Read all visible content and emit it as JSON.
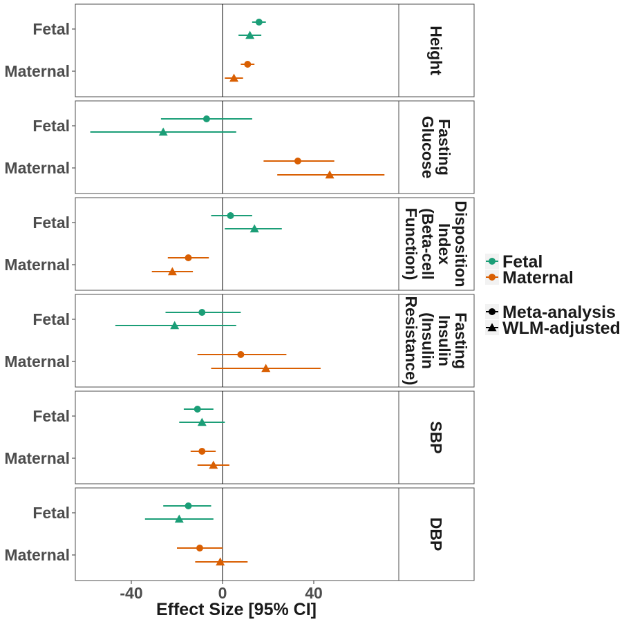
{
  "chart_data": {
    "type": "scatter",
    "subtype": "forest-plot",
    "xlabel": "Effect Size [95% CI]",
    "x_ticks": [
      -40,
      0,
      40
    ],
    "xlim": [
      -64,
      110
    ],
    "reference_line": 0,
    "y_categories": [
      "Fetal",
      "Maternal"
    ],
    "colors": {
      "Fetal": "#1b9e77",
      "Maternal": "#d95f02"
    },
    "legend": {
      "color_title": "",
      "color_entries": [
        "Fetal",
        "Maternal"
      ],
      "shape_title": "",
      "shape_entries": [
        "Meta-analysis",
        "WLM-adjusted"
      ],
      "placement": "right"
    },
    "panels": [
      {
        "label": "Height",
        "rows": [
          {
            "group": "Fetal",
            "method": "Meta-analysis",
            "est": 16,
            "lo": 13,
            "hi": 19
          },
          {
            "group": "Fetal",
            "method": "WLM-adjusted",
            "est": 12,
            "lo": 7,
            "hi": 17
          },
          {
            "group": "Maternal",
            "method": "Meta-analysis",
            "est": 11,
            "lo": 8,
            "hi": 14
          },
          {
            "group": "Maternal",
            "method": "WLM-adjusted",
            "est": 5,
            "lo": 1,
            "hi": 9
          }
        ]
      },
      {
        "label": "Fasting Glucose",
        "rows": [
          {
            "group": "Fetal",
            "method": "Meta-analysis",
            "est": -7,
            "lo": -27,
            "hi": 13
          },
          {
            "group": "Fetal",
            "method": "WLM-adjusted",
            "est": -26,
            "lo": -58,
            "hi": 6
          },
          {
            "group": "Maternal",
            "method": "Meta-analysis",
            "est": 33,
            "lo": 18,
            "hi": 49
          },
          {
            "group": "Maternal",
            "method": "WLM-adjusted",
            "est": 47,
            "lo": 24,
            "hi": 71
          }
        ]
      },
      {
        "label": "Disposition Index (Beta-cell Function)",
        "rows": [
          {
            "group": "Fetal",
            "method": "Meta-analysis",
            "est": 3.5,
            "lo": -5,
            "hi": 13
          },
          {
            "group": "Fetal",
            "method": "WLM-adjusted",
            "est": 14,
            "lo": 1,
            "hi": 26
          },
          {
            "group": "Maternal",
            "method": "Meta-analysis",
            "est": -15,
            "lo": -24,
            "hi": -6
          },
          {
            "group": "Maternal",
            "method": "WLM-adjusted",
            "est": -22,
            "lo": -31,
            "hi": -13
          }
        ]
      },
      {
        "label": "Fasting Insulin (Insulin Resistance)",
        "rows": [
          {
            "group": "Fetal",
            "method": "Meta-analysis",
            "est": -9,
            "lo": -25,
            "hi": 8
          },
          {
            "group": "Fetal",
            "method": "WLM-adjusted",
            "est": -21,
            "lo": -47,
            "hi": 6
          },
          {
            "group": "Maternal",
            "method": "Meta-analysis",
            "est": 8,
            "lo": -11,
            "hi": 28
          },
          {
            "group": "Maternal",
            "method": "WLM-adjusted",
            "est": 19,
            "lo": -5,
            "hi": 43
          }
        ]
      },
      {
        "label": "SBP",
        "rows": [
          {
            "group": "Fetal",
            "method": "Meta-analysis",
            "est": -11,
            "lo": -17,
            "hi": -4
          },
          {
            "group": "Fetal",
            "method": "WLM-adjusted",
            "est": -9,
            "lo": -19,
            "hi": 1
          },
          {
            "group": "Maternal",
            "method": "Meta-analysis",
            "est": -9,
            "lo": -14,
            "hi": -3
          },
          {
            "group": "Maternal",
            "method": "WLM-adjusted",
            "est": -4,
            "lo": -11,
            "hi": 3
          }
        ]
      },
      {
        "label": "DBP",
        "rows": [
          {
            "group": "Fetal",
            "method": "Meta-analysis",
            "est": -15,
            "lo": -26,
            "hi": -5
          },
          {
            "group": "Fetal",
            "method": "WLM-adjusted",
            "est": -19,
            "lo": -34,
            "hi": -4
          },
          {
            "group": "Maternal",
            "method": "Meta-analysis",
            "est": -10,
            "lo": -20,
            "hi": 0
          },
          {
            "group": "Maternal",
            "method": "WLM-adjusted",
            "est": -1,
            "lo": -12,
            "hi": 11
          }
        ]
      }
    ]
  }
}
